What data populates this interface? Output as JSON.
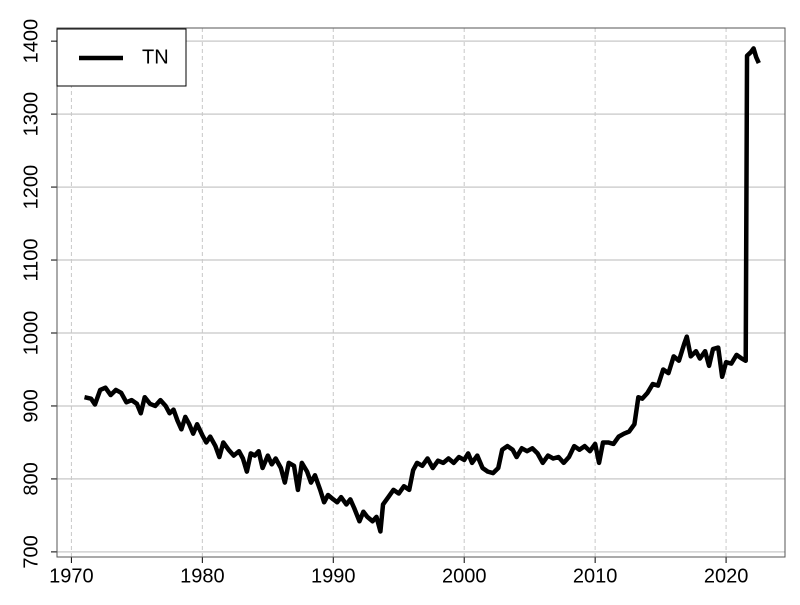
{
  "chart_data": {
    "type": "line",
    "x": [
      1971.0,
      1971.5,
      1971.8,
      1972.2,
      1972.6,
      1973.0,
      1973.4,
      1973.8,
      1974.2,
      1974.6,
      1975.0,
      1975.3,
      1975.6,
      1976.0,
      1976.4,
      1976.8,
      1977.2,
      1977.5,
      1977.8,
      1978.1,
      1978.4,
      1978.7,
      1979.0,
      1979.3,
      1979.6,
      1980.0,
      1980.3,
      1980.6,
      1981.0,
      1981.3,
      1981.6,
      1982.0,
      1982.4,
      1982.8,
      1983.1,
      1983.4,
      1983.7,
      1984.0,
      1984.3,
      1984.6,
      1985.0,
      1985.3,
      1985.6,
      1986.0,
      1986.3,
      1986.6,
      1987.0,
      1987.3,
      1987.6,
      1988.0,
      1988.3,
      1988.6,
      1989.0,
      1989.3,
      1989.6,
      1990.0,
      1990.3,
      1990.6,
      1991.0,
      1991.3,
      1991.6,
      1992.0,
      1992.3,
      1992.6,
      1993.0,
      1993.3,
      1993.6,
      1993.8,
      1994.2,
      1994.6,
      1995.0,
      1995.4,
      1995.8,
      1996.1,
      1996.4,
      1996.8,
      1997.2,
      1997.6,
      1998.0,
      1998.4,
      1998.8,
      1999.2,
      1999.6,
      2000.0,
      2000.3,
      2000.6,
      2001.0,
      2001.4,
      2001.8,
      2002.2,
      2002.6,
      2002.9,
      2003.3,
      2003.7,
      2004.0,
      2004.4,
      2004.8,
      2005.2,
      2005.6,
      2006.0,
      2006.4,
      2006.8,
      2007.2,
      2007.6,
      2008.0,
      2008.4,
      2008.8,
      2009.2,
      2009.6,
      2010.0,
      2010.3,
      2010.6,
      2011.0,
      2011.4,
      2011.8,
      2012.2,
      2012.6,
      2013.0,
      2013.3,
      2013.6,
      2014.0,
      2014.4,
      2014.8,
      2015.2,
      2015.6,
      2016.0,
      2016.4,
      2016.8,
      2017.0,
      2017.3,
      2017.7,
      2018.0,
      2018.4,
      2018.7,
      2019.0,
      2019.4,
      2019.7,
      2020.0,
      2020.4,
      2020.8,
      2021.2,
      2021.5,
      2021.6,
      2021.9,
      2022.1,
      2022.3,
      2022.5
    ],
    "series": [
      {
        "name": "TN",
        "color": "#000000",
        "values": [
          912,
          910,
          902,
          922,
          925,
          915,
          922,
          918,
          905,
          908,
          903,
          890,
          912,
          903,
          900,
          908,
          900,
          890,
          895,
          880,
          868,
          885,
          875,
          862,
          875,
          860,
          850,
          858,
          845,
          830,
          850,
          840,
          832,
          838,
          828,
          810,
          835,
          832,
          838,
          815,
          832,
          820,
          828,
          815,
          795,
          822,
          818,
          785,
          822,
          810,
          795,
          805,
          785,
          768,
          778,
          772,
          768,
          775,
          765,
          772,
          760,
          742,
          755,
          748,
          742,
          748,
          728,
          765,
          775,
          785,
          780,
          790,
          785,
          812,
          822,
          818,
          828,
          815,
          825,
          822,
          828,
          822,
          830,
          826,
          835,
          822,
          832,
          815,
          810,
          808,
          815,
          840,
          845,
          840,
          830,
          842,
          838,
          842,
          835,
          822,
          832,
          828,
          830,
          822,
          830,
          845,
          840,
          845,
          838,
          848,
          822,
          850,
          850,
          848,
          858,
          862,
          865,
          875,
          912,
          910,
          918,
          930,
          928,
          950,
          945,
          968,
          962,
          985,
          995,
          968,
          975,
          965,
          975,
          955,
          978,
          980,
          940,
          960,
          958,
          970,
          965,
          962,
          1380,
          1385,
          1390,
          1378,
          1370
        ]
      }
    ],
    "xlim": [
      1968.9,
      2024.5
    ],
    "xticks": [
      1970,
      1980,
      1990,
      2000,
      2010,
      2020
    ],
    "ylim": [
      693,
      1418
    ],
    "yticks": [
      700,
      800,
      900,
      1000,
      1100,
      1200,
      1300,
      1400
    ],
    "grid": true,
    "legend": "upper left"
  }
}
